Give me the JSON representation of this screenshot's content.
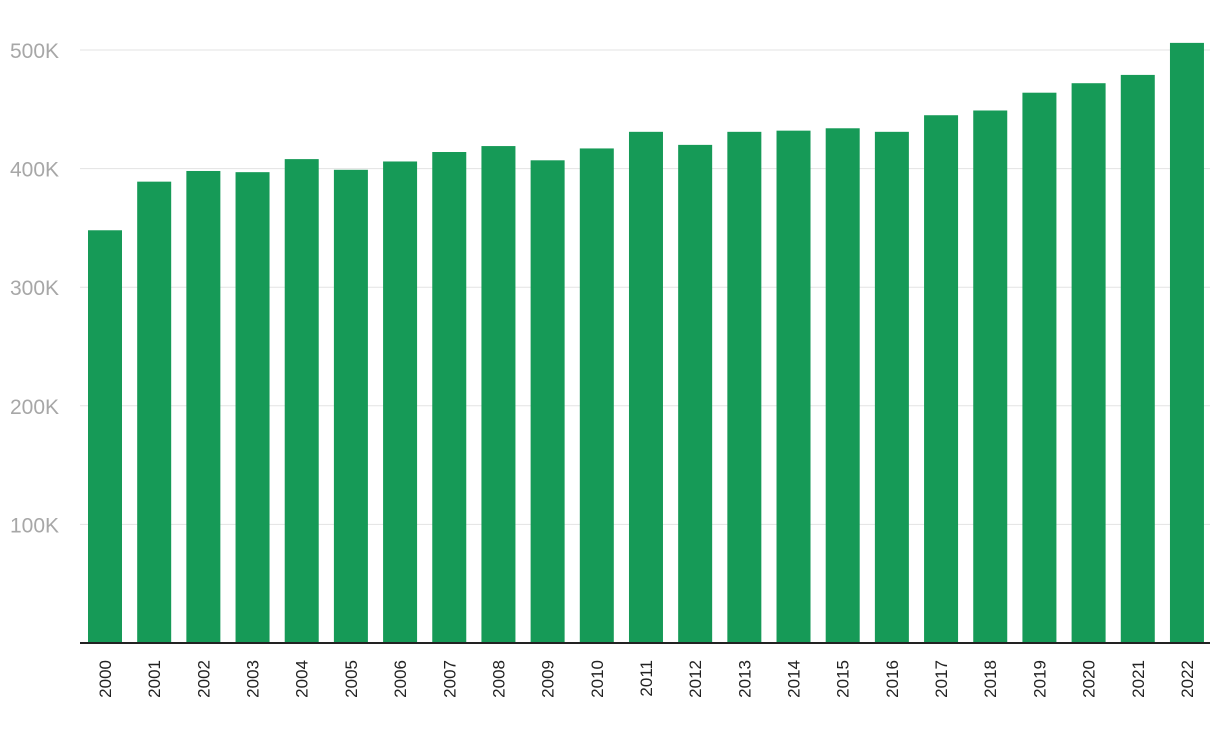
{
  "chart_data": {
    "type": "bar",
    "title": "",
    "xlabel": "",
    "ylabel": "",
    "categories": [
      "2000",
      "2001",
      "2002",
      "2003",
      "2004",
      "2005",
      "2006",
      "2007",
      "2008",
      "2009",
      "2010",
      "2011",
      "2012",
      "2013",
      "2014",
      "2015",
      "2016",
      "2017",
      "2018",
      "2019",
      "2020",
      "2021",
      "2022"
    ],
    "values": [
      348000,
      389000,
      398000,
      397000,
      408000,
      399000,
      406000,
      414000,
      419000,
      407000,
      417000,
      431000,
      420000,
      431000,
      432000,
      434000,
      431000,
      445000,
      449000,
      464000,
      472000,
      479000,
      506000
    ],
    "ylim": [
      0,
      500000
    ],
    "yticks": [
      100000,
      200000,
      300000,
      400000,
      500000
    ],
    "ytick_labels": [
      "100K",
      "200K",
      "300K",
      "400K",
      "500K"
    ],
    "grid": true,
    "legend": "none",
    "bar_color": "#169a57"
  }
}
